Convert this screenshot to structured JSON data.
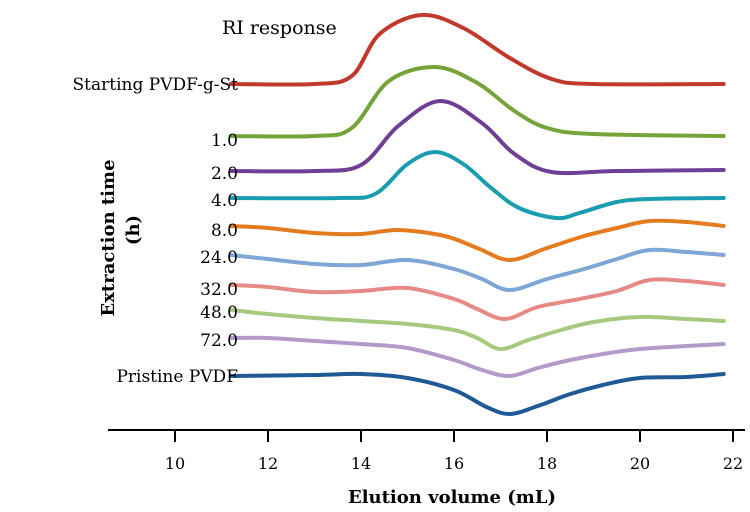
{
  "chart_data": {
    "type": "line",
    "annotation": "RI response",
    "xlabel": "Elution volume (mL)",
    "ylabel_line1": "Extraction time",
    "ylabel_line2": "(h)",
    "xlim": [
      9,
      22
    ],
    "xticks": [
      10,
      12,
      14,
      16,
      18,
      20,
      22
    ],
    "grid": false,
    "legend": "none",
    "series": [
      {
        "name": "Starting PVDF-g-St",
        "color": "#c0392b",
        "baseline": 84,
        "points": [
          [
            11.2,
            0
          ],
          [
            13,
            0
          ],
          [
            13.8,
            -8
          ],
          [
            14.4,
            -50
          ],
          [
            15.3,
            -69
          ],
          [
            16.2,
            -56
          ],
          [
            17.2,
            -26
          ],
          [
            18.1,
            -5
          ],
          [
            19,
            0
          ],
          [
            21.8,
            0
          ]
        ]
      },
      {
        "name": "1.0",
        "color": "#76a43a",
        "baseline": 136,
        "points": [
          [
            11.2,
            0
          ],
          [
            13,
            0
          ],
          [
            13.8,
            -8
          ],
          [
            14.6,
            -55
          ],
          [
            15.6,
            -69
          ],
          [
            16.5,
            -53
          ],
          [
            17.3,
            -25
          ],
          [
            18,
            -8
          ],
          [
            19,
            -2
          ],
          [
            21.8,
            0
          ]
        ]
      },
      {
        "name": "2.0",
        "color": "#6f3f96",
        "baseline": 171,
        "points": [
          [
            11.2,
            0
          ],
          [
            13,
            0
          ],
          [
            14,
            -6
          ],
          [
            14.8,
            -45
          ],
          [
            15.7,
            -70
          ],
          [
            16.6,
            -48
          ],
          [
            17.3,
            -17
          ],
          [
            18.1,
            1
          ],
          [
            19.5,
            0
          ],
          [
            21.8,
            -1
          ]
        ]
      },
      {
        "name": "4.0",
        "color": "#1a9db0",
        "baseline": 198,
        "points": [
          [
            11.2,
            0
          ],
          [
            13.5,
            0
          ],
          [
            14.3,
            -4
          ],
          [
            15,
            -34
          ],
          [
            15.6,
            -46
          ],
          [
            16.2,
            -34
          ],
          [
            16.8,
            -10
          ],
          [
            17.4,
            10
          ],
          [
            18.2,
            20
          ],
          [
            18.7,
            15
          ],
          [
            19.5,
            4
          ],
          [
            20.2,
            1
          ],
          [
            21.8,
            0
          ]
        ]
      },
      {
        "name": "8.0",
        "color": "#e57b1f",
        "baseline": 226,
        "points": [
          [
            11.2,
            0
          ],
          [
            12,
            2
          ],
          [
            13,
            7
          ],
          [
            14,
            8
          ],
          [
            14.8,
            4
          ],
          [
            15.8,
            10
          ],
          [
            16.5,
            22
          ],
          [
            17.2,
            34
          ],
          [
            18,
            22
          ],
          [
            18.8,
            10
          ],
          [
            19.5,
            2
          ],
          [
            20.2,
            -5
          ],
          [
            21,
            -4
          ],
          [
            21.8,
            0
          ]
        ]
      },
      {
        "name": "24.0",
        "color": "#7ea6d6",
        "baseline": 255,
        "points": [
          [
            11.2,
            0
          ],
          [
            12,
            4
          ],
          [
            13,
            9
          ],
          [
            14,
            10
          ],
          [
            15,
            5
          ],
          [
            16,
            14
          ],
          [
            16.6,
            24
          ],
          [
            17.2,
            35
          ],
          [
            18,
            24
          ],
          [
            18.8,
            14
          ],
          [
            19.5,
            4
          ],
          [
            20.2,
            -5
          ],
          [
            21,
            -3
          ],
          [
            21.8,
            0
          ]
        ]
      },
      {
        "name": "32.0",
        "color": "#e58a87",
        "baseline": 285,
        "points": [
          [
            11.2,
            0
          ],
          [
            12,
            2
          ],
          [
            13,
            7
          ],
          [
            14,
            6
          ],
          [
            15,
            3
          ],
          [
            16,
            14
          ],
          [
            16.5,
            24
          ],
          [
            17.1,
            34
          ],
          [
            17.8,
            22
          ],
          [
            18.7,
            14
          ],
          [
            19.5,
            6
          ],
          [
            20.2,
            -5
          ],
          [
            21,
            -4
          ],
          [
            21.8,
            0
          ]
        ]
      },
      {
        "name": "48.0",
        "color": "#a6c87f",
        "baseline": 310,
        "points": [
          [
            11.2,
            0
          ],
          [
            12,
            4
          ],
          [
            13,
            8
          ],
          [
            14,
            11
          ],
          [
            15,
            14
          ],
          [
            16,
            20
          ],
          [
            16.5,
            28
          ],
          [
            17,
            39
          ],
          [
            17.6,
            30
          ],
          [
            18.3,
            20
          ],
          [
            19,
            12
          ],
          [
            20,
            7
          ],
          [
            21,
            9
          ],
          [
            21.8,
            11
          ]
        ]
      },
      {
        "name": "72.0",
        "color": "#b39ac8",
        "baseline": 338,
        "points": [
          [
            11.2,
            0
          ],
          [
            12,
            0
          ],
          [
            13,
            3
          ],
          [
            14,
            6
          ],
          [
            15,
            10
          ],
          [
            16,
            22
          ],
          [
            16.6,
            32
          ],
          [
            17.2,
            38
          ],
          [
            17.8,
            30
          ],
          [
            18.5,
            22
          ],
          [
            19.2,
            16
          ],
          [
            20,
            11
          ],
          [
            21,
            8
          ],
          [
            21.8,
            6
          ]
        ]
      },
      {
        "name": "Pristine PVDF",
        "color": "#1f5a96",
        "baseline": 376,
        "points": [
          [
            11.2,
            0
          ],
          [
            13,
            -1
          ],
          [
            14,
            -2
          ],
          [
            15,
            2
          ],
          [
            16,
            14
          ],
          [
            16.7,
            31
          ],
          [
            17.2,
            38
          ],
          [
            17.8,
            30
          ],
          [
            18.5,
            18
          ],
          [
            19.2,
            9
          ],
          [
            20,
            2
          ],
          [
            21,
            1
          ],
          [
            21.8,
            -2
          ]
        ]
      }
    ]
  }
}
